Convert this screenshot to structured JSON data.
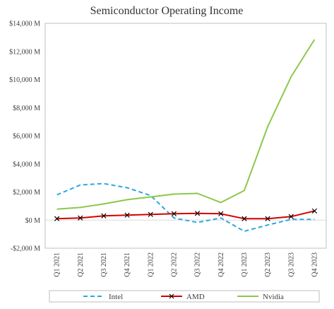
{
  "chart_data": {
    "type": "line",
    "title": "Semiconductor Operating Income",
    "xlabel": "",
    "ylabel": "",
    "categories": [
      "Q1 2021",
      "Q2 2021",
      "Q3 2021",
      "Q4 2021",
      "Q1 2022",
      "Q2 2022",
      "Q3 2022",
      "Q4 2022",
      "Q1 2023",
      "Q2 2023",
      "Q3 2023",
      "Q4 2023"
    ],
    "ylim": [
      -2000,
      14000
    ],
    "yticks": [
      -2000,
      0,
      2000,
      4000,
      6000,
      8000,
      10000,
      12000,
      14000
    ],
    "ytick_labels": [
      "-$2,000 M",
      "$0 M",
      "$2,000 M",
      "$4,000 M",
      "$6,000 M",
      "$8,000 M",
      "$10,000 M",
      "$12,000 M",
      "$14,000 M"
    ],
    "grid": false,
    "legend_position": "bottom",
    "series": [
      {
        "name": "Intel",
        "color": "#2aa8e0",
        "style": "dashed",
        "marker": "none",
        "values": [
          1800,
          2500,
          2600,
          2300,
          1750,
          150,
          -170,
          150,
          -800,
          -350,
          50,
          50
        ]
      },
      {
        "name": "AMD",
        "color": "#d40000",
        "style": "solid",
        "marker": "x",
        "values": [
          100,
          150,
          300,
          350,
          400,
          450,
          480,
          450,
          100,
          100,
          250,
          650
        ]
      },
      {
        "name": "Nvidia",
        "color": "#8cc84b",
        "style": "solid",
        "marker": "none",
        "values": [
          780,
          900,
          1150,
          1450,
          1650,
          1850,
          1900,
          1250,
          2100,
          6650,
          10200,
          12850
        ]
      }
    ]
  }
}
